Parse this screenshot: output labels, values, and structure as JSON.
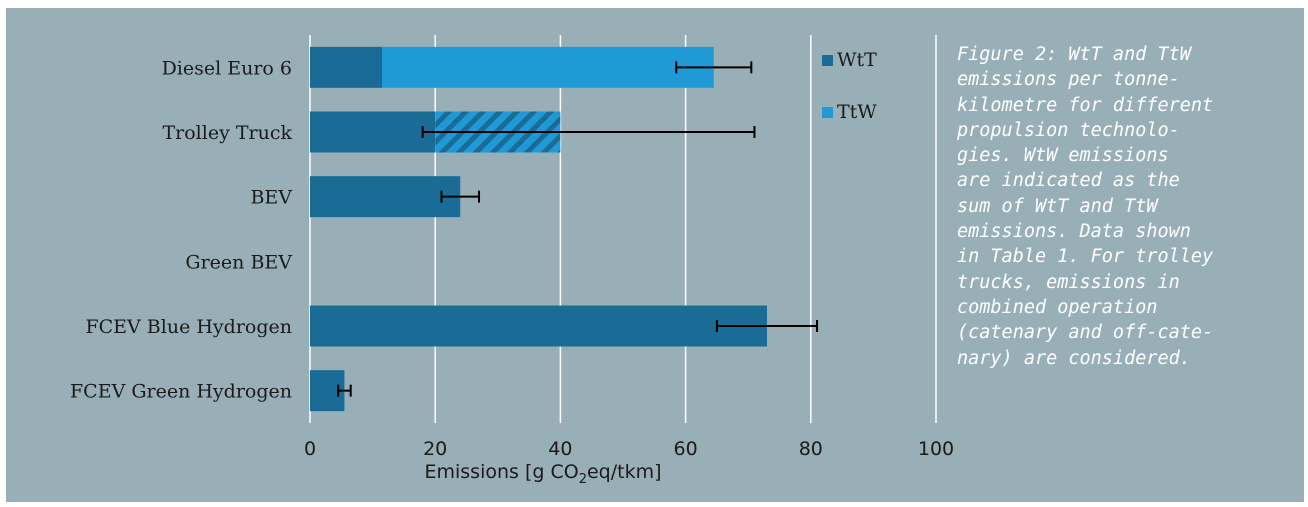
{
  "colors": {
    "wtt": "#1a6c97",
    "ttw": "#1f9ad7",
    "background": "#99afb7",
    "grid": "#ffffff",
    "error_bar": "#000000"
  },
  "legend": [
    "WtT",
    "TtW"
  ],
  "caption": "Figure 2: WtT and TtW\nemissions per tonne-\nkilometre for different\npropulsion technolo-\ngies. WtW emissions\nare indicated as the\nsum of WtT and TtW\nemissions. Data shown\nin Table 1. For trolley\ntrucks, emissions in\ncombined operation\n(catenary and off-cate-\nnary) are considered.",
  "axis": {
    "xlabel_prefix": "Emissions [g CO",
    "xlabel_sub": "2",
    "xlabel_suffix": "eq/tkm]",
    "ticks": [
      "0",
      "20",
      "40",
      "60",
      "80",
      "100"
    ]
  },
  "chart_data": {
    "type": "bar",
    "orientation": "horizontal",
    "stacked": true,
    "categories": [
      "Diesel Euro 6",
      "Trolley Truck",
      "BEV",
      "Green BEV",
      "FCEV Blue Hydrogen",
      "FCEV Green Hydrogen"
    ],
    "series": [
      {
        "name": "WtT",
        "values": [
          11.5,
          20,
          24,
          0,
          73,
          5.5
        ]
      },
      {
        "name": "TtW",
        "values": [
          53,
          20,
          0,
          0,
          0,
          0
        ]
      }
    ],
    "hatched_ttw_categories": [
      "Trolley Truck"
    ],
    "error_bars": [
      {
        "category": "Diesel Euro 6",
        "low": 58.5,
        "high": 70.5
      },
      {
        "category": "Trolley Truck",
        "low": 18,
        "high": 71
      },
      {
        "category": "BEV",
        "low": 21,
        "high": 27
      },
      {
        "category": "FCEV Blue Hydrogen",
        "low": 65,
        "high": 81
      },
      {
        "category": "FCEV Green Hydrogen",
        "low": 4.5,
        "high": 6.5
      }
    ],
    "xlim": [
      0,
      100
    ],
    "xticks": [
      0,
      20,
      40,
      60,
      80,
      100
    ],
    "grid": true,
    "legend_position": "right"
  }
}
